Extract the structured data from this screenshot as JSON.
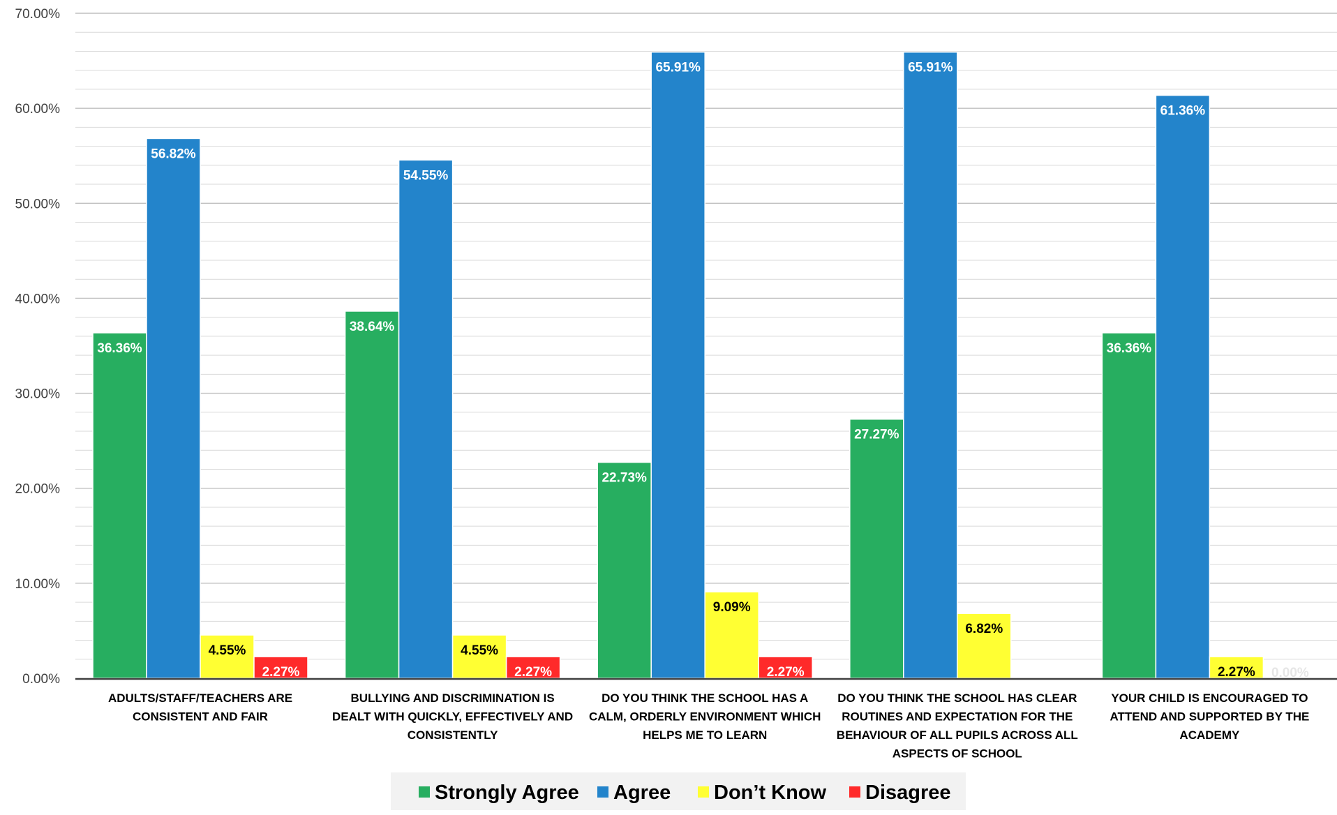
{
  "chart_data": {
    "type": "bar",
    "ylim": [
      0,
      70
    ],
    "y_ticks": [
      "0.00%",
      "10.00%",
      "20.00%",
      "30.00%",
      "40.00%",
      "50.00%",
      "60.00%",
      "70.00%"
    ],
    "grid": true,
    "legend_position": "bottom",
    "categories": [
      [
        "ADULTS/STAFF/TEACHERS ARE",
        "CONSISTENT AND FAIR"
      ],
      [
        "BULLYING AND DISCRIMINATION IS",
        "DEALT WITH QUICKLY, EFFECTIVELY AND",
        "CONSISTENTLY"
      ],
      [
        "DO YOU THINK THE SCHOOL HAS A",
        "CALM, ORDERLY ENVIRONMENT WHICH",
        "HELPS ME TO LEARN"
      ],
      [
        "DO YOU THINK THE SCHOOL HAS CLEAR",
        "ROUTINES AND EXPECTATION FOR THE",
        "BEHAVIOUR OF ALL PUPILS ACROSS ALL",
        "ASPECTS OF SCHOOL"
      ],
      [
        "YOUR CHILD IS ENCOURAGED TO",
        "ATTEND AND SUPPORTED BY THE",
        "ACADEMY"
      ]
    ],
    "series": [
      {
        "name": "Strongly Agree",
        "color": "#27ae60",
        "label_color": "#ffffff",
        "values": [
          36.36,
          38.64,
          22.73,
          27.27,
          36.36
        ],
        "labels": [
          "36.36%",
          "38.64%",
          "22.73%",
          "27.27%",
          "36.36%"
        ]
      },
      {
        "name": "Agree",
        "color": "#2384cb",
        "label_color": "#ffffff",
        "values": [
          56.82,
          54.55,
          65.91,
          65.91,
          61.36
        ],
        "labels": [
          "56.82%",
          "54.55%",
          "65.91%",
          "65.91%",
          "61.36%"
        ]
      },
      {
        "name": "Don’t Know",
        "color": "#ffff33",
        "label_color": "#000000",
        "values": [
          4.55,
          4.55,
          9.09,
          6.82,
          2.27
        ],
        "labels": [
          "4.55%",
          "4.55%",
          "9.09%",
          "6.82%",
          "2.27%"
        ]
      },
      {
        "name": "Disagree",
        "color": "#ff2a2a",
        "label_color": "#ffffff",
        "values": [
          2.27,
          2.27,
          2.27,
          0,
          0
        ],
        "labels": [
          "2.27%",
          "2.27%",
          "2.27%",
          "",
          "0.00%"
        ]
      }
    ]
  }
}
